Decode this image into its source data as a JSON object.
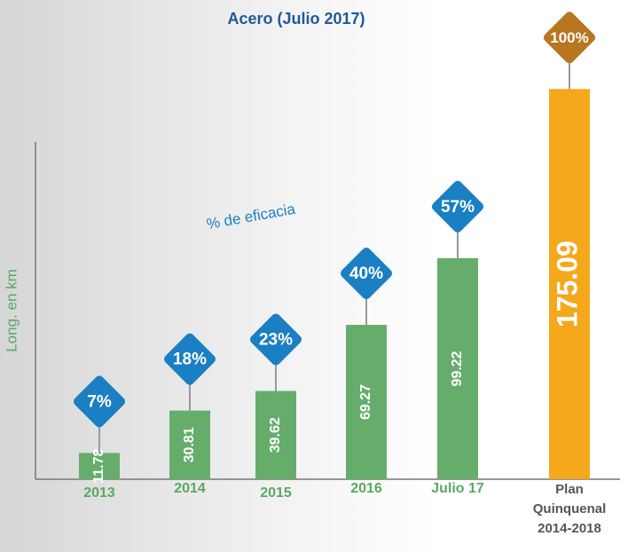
{
  "chart_data": {
    "type": "bar",
    "title": "Acero (Julio 2017)",
    "y_label": "Long. en km",
    "annotation": "% de eficacia",
    "categories": [
      "2013",
      "2014",
      "2015",
      "2016",
      "Julio 17",
      "Plan\nQuinquenal\n2014-2018"
    ],
    "values": [
      11.78,
      30.81,
      39.62,
      69.27,
      99.22,
      175.09
    ],
    "colors": [
      "#66ad6c",
      "#66ad6c",
      "#66ad6c",
      "#66ad6c",
      "#66ad6c",
      "#f5a81c"
    ],
    "efficacy_labels": [
      "7%",
      "18%",
      "23%",
      "40%",
      "57%",
      "100%"
    ],
    "efficacy_colors": [
      "#1b7fc3",
      "#1b7fc3",
      "#1b7fc3",
      "#1b7fc3",
      "#1b7fc3",
      "#b7761f"
    ],
    "ylim": [
      0,
      180
    ]
  }
}
